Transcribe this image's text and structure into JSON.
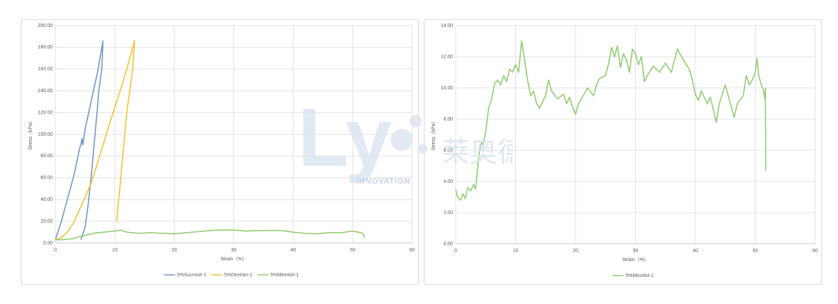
{
  "chart_data": [
    {
      "type": "line",
      "xlabel": "Strain（%）",
      "ylabel": "Stress（kPa）",
      "xlim": [
        0,
        60
      ],
      "xticks": [
        0,
        10,
        20,
        30,
        40,
        50,
        60
      ],
      "ylim": [
        0,
        200
      ],
      "yticks": [
        {
          "value": 0,
          "label": "0.00"
        },
        {
          "value": 20,
          "label": "20.00"
        },
        {
          "value": 40,
          "label": "40.00"
        },
        {
          "value": 60,
          "label": "60.00"
        },
        {
          "value": 80,
          "label": "80.00"
        },
        {
          "value": 100,
          "label": "100.00"
        },
        {
          "value": 120,
          "label": "120.00"
        },
        {
          "value": 140,
          "label": "140.00"
        },
        {
          "value": 160,
          "label": "160.00"
        },
        {
          "value": 180,
          "label": "180.00"
        },
        {
          "value": 200,
          "label": "200.00"
        }
      ],
      "grid": true,
      "legend": "bottom",
      "series": [
        {
          "name": "5%Sucrose-1",
          "color": "#7094c8",
          "x": [
            0,
            1,
            2,
            3,
            3.5,
            4,
            4.5,
            4.6,
            5,
            6,
            7,
            7.5,
            8,
            7.8,
            7.3,
            7,
            6.5,
            6,
            5.5,
            5,
            4.3
          ],
          "values": [
            3,
            20,
            40,
            60,
            72,
            85,
            96,
            90,
            105,
            130,
            155,
            170,
            186,
            160,
            140,
            120,
            90,
            60,
            35,
            15,
            3
          ]
        },
        {
          "name": "5%Dextran-1",
          "color": "#f2c12e",
          "x": [
            0,
            1,
            2,
            3,
            4,
            5,
            6,
            7,
            8,
            9,
            10,
            11,
            12,
            13.3,
            13,
            12.5,
            12,
            11.5,
            11,
            10.3
          ],
          "values": [
            3,
            5,
            10,
            18,
            30,
            42,
            55,
            72,
            90,
            108,
            125,
            142,
            160,
            186,
            160,
            140,
            120,
            90,
            60,
            20
          ]
        },
        {
          "name": "5%Minnitol-1",
          "color": "#90cc6e",
          "x": [
            0,
            1,
            2,
            3,
            4,
            5,
            6,
            7,
            8,
            9,
            10,
            11,
            12,
            13,
            14,
            16,
            18,
            20,
            22,
            24,
            26,
            28,
            30,
            32,
            34,
            36,
            38,
            40,
            42,
            44,
            46,
            48,
            50,
            51,
            51.7,
            52
          ],
          "values": [
            3,
            3,
            3.5,
            4,
            6,
            7,
            8.5,
            9.5,
            10,
            10.5,
            11,
            12,
            10,
            9.5,
            9,
            9.5,
            9,
            8.5,
            9.5,
            10.5,
            11.5,
            12,
            12,
            11,
            11.5,
            11.5,
            11.5,
            10,
            9,
            8.5,
            9.5,
            9.5,
            11,
            10,
            9,
            5
          ]
        }
      ]
    },
    {
      "type": "line",
      "xlabel": "Strain（%）",
      "ylabel": "Stress（kPa）",
      "xlim": [
        0,
        60
      ],
      "xticks": [
        0,
        10,
        20,
        30,
        40,
        50,
        60
      ],
      "ylim": [
        0,
        14
      ],
      "yticks": [
        {
          "value": 0,
          "label": "0.00"
        },
        {
          "value": 2,
          "label": "2.00"
        },
        {
          "value": 4,
          "label": "4.00"
        },
        {
          "value": 6,
          "label": "6.00"
        },
        {
          "value": 8,
          "label": "8.00"
        },
        {
          "value": 10,
          "label": "10.00"
        },
        {
          "value": 12,
          "label": "12.00"
        },
        {
          "value": 14,
          "label": "14.00"
        }
      ],
      "grid": true,
      "legend": "bottom",
      "series": [
        {
          "name": "5%Minnitol-1",
          "color": "#90cc6e",
          "x": [
            0,
            0.3,
            0.8,
            1.2,
            1.6,
            2,
            2.5,
            3,
            3.3,
            3.7,
            4,
            4.3,
            4.6,
            5,
            5.5,
            6,
            6.5,
            7,
            7.5,
            8,
            8.5,
            9,
            9.5,
            10,
            10.5,
            11,
            11.5,
            12,
            12.5,
            13,
            13.5,
            14,
            15,
            15.5,
            16,
            17,
            18,
            18.5,
            19,
            19.5,
            20,
            20.5,
            21,
            22,
            23,
            23.5,
            24,
            25,
            25.5,
            26,
            26.5,
            27,
            27.5,
            28,
            28.5,
            29,
            29.5,
            30,
            30.5,
            31,
            31.5,
            32,
            33,
            34,
            35,
            36,
            37,
            38,
            39,
            39.5,
            40,
            40.5,
            41,
            42,
            42.5,
            43,
            43.5,
            44,
            44.5,
            45,
            46,
            46.5,
            47,
            48,
            48.5,
            49,
            49.5,
            50,
            50.3,
            50.6,
            51,
            51.4,
            51.6,
            51.7,
            51.75
          ],
          "values": [
            3.5,
            3.0,
            2.8,
            3.2,
            2.9,
            3.6,
            3.4,
            3.8,
            3.5,
            5.0,
            6.0,
            6.5,
            6.3,
            7.2,
            8.7,
            9.3,
            10.3,
            10.5,
            10.2,
            10.8,
            10.4,
            11.2,
            11.0,
            11.5,
            11.0,
            13.0,
            11.8,
            10.5,
            9.5,
            9.8,
            9.0,
            8.7,
            9.5,
            10.5,
            9.8,
            9.3,
            9.6,
            9.0,
            9.4,
            8.8,
            8.3,
            9.0,
            9.3,
            10.0,
            9.5,
            10.2,
            10.6,
            10.8,
            11.5,
            12.6,
            12.0,
            12.7,
            11.3,
            12.2,
            11.8,
            11.0,
            12.5,
            12.2,
            11.5,
            12.0,
            10.4,
            10.8,
            11.4,
            11.0,
            11.6,
            11.0,
            12.5,
            11.8,
            11.2,
            10.5,
            9.6,
            9.2,
            9.8,
            9.0,
            9.4,
            8.6,
            7.8,
            9.0,
            9.6,
            10.2,
            8.8,
            8.1,
            9.0,
            9.5,
            10.8,
            10.2,
            10.5,
            11.0,
            11.9,
            10.8,
            10.2,
            9.8,
            9.3,
            10.0,
            4.7
          ]
        }
      ]
    }
  ],
  "watermark": {
    "logo": "Ly",
    "text": "INNOVATION",
    "cn": "莱奥德创"
  }
}
